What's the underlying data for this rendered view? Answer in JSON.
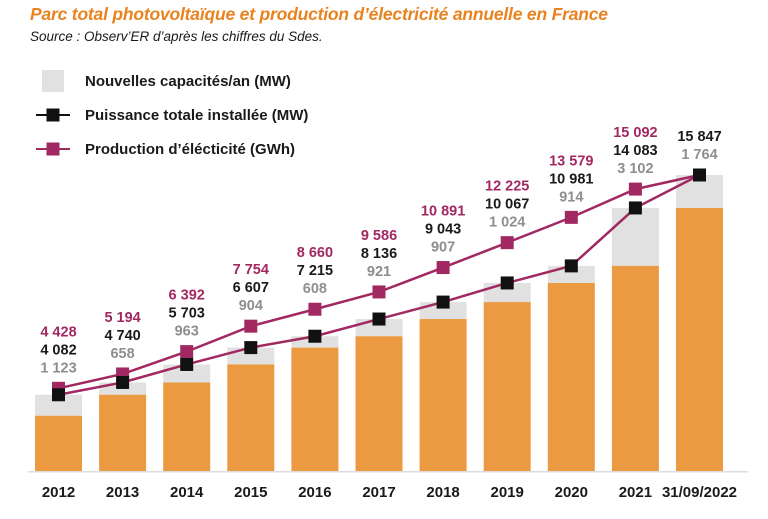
{
  "header": {
    "title": "Parc total photovoltaïque et production d’électricité annuelle en France",
    "source": "Source : Observ’ER d’après les chiffres du Sdes."
  },
  "colors": {
    "title_orange": "#E8831F",
    "bar_orange": "#EC9A41",
    "bar_gray": "#E1E1E1",
    "line_purple": "#A22862",
    "marker_black": "#111111",
    "value_label_purple": "#A22862",
    "value_label_black": "#1A1A1A",
    "value_label_gray": "#8E8E8E",
    "axis_line_gray": "#DCDCDC",
    "axis_text_black": "#1A1A1A"
  },
  "chart_data": {
    "type": "bar",
    "subtype": "stacked-bar-with-lines",
    "categories": [
      "2012",
      "2013",
      "2014",
      "2015",
      "2016",
      "2017",
      "2018",
      "2019",
      "2020",
      "2021",
      "31/09/2022"
    ],
    "series": [
      {
        "name": "Nouvelles capacités/an (MW)",
        "render": "bar-top-segment-gray",
        "values": [
          1123,
          658,
          963,
          904,
          608,
          921,
          907,
          1024,
          914,
          3102,
          1764
        ]
      },
      {
        "name": "Puissance totale installée (MW)",
        "render": "line-black-square-marker",
        "values": [
          4082,
          4740,
          5703,
          6607,
          7215,
          8136,
          9043,
          10067,
          10981,
          14083,
          15847
        ]
      },
      {
        "name": "Production d’élécticité (GWh)",
        "render": "line-purple-square-marker",
        "values": [
          4428,
          5194,
          6392,
          7754,
          8660,
          9586,
          10891,
          12225,
          13579,
          15092,
          null
        ]
      }
    ],
    "title": "Parc total photovoltaïque et production d’électricité annuelle en France",
    "xlabel": "",
    "ylabel": "",
    "ylim": [
      0,
      16500
    ],
    "grid": false,
    "legend_position": "top-left",
    "value_labels_shown": true
  }
}
